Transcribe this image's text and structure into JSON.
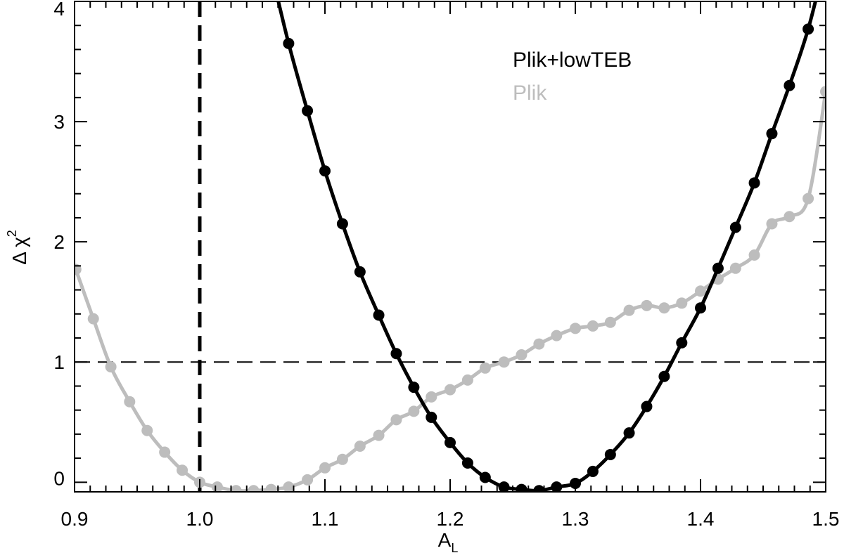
{
  "chart_data": {
    "type": "line",
    "title": "",
    "xlabel": "A",
    "xlabel_sub": "L",
    "ylabel": "Δ χ",
    "ylabel_sup": "2",
    "xlim": [
      0.9,
      1.5
    ],
    "ylim": [
      -0.08,
      4.0
    ],
    "x_ticks": [
      0.9,
      1.0,
      1.1,
      1.2,
      1.3,
      1.4,
      1.5
    ],
    "x_tick_labels": [
      "0.9",
      "1.0",
      "1.1",
      "1.2",
      "1.3",
      "1.4",
      "1.5"
    ],
    "y_ticks": [
      0,
      1,
      2,
      3,
      4
    ],
    "y_tick_labels": [
      "0",
      "1",
      "2",
      "3",
      "4"
    ],
    "grid": false,
    "legend_position": "top-right",
    "reference_lines": [
      {
        "orientation": "vertical",
        "value": 1.0,
        "style": "bold-dashed"
      },
      {
        "orientation": "horizontal",
        "value": 1.0,
        "style": "dashed"
      }
    ],
    "series": [
      {
        "name": "Plik+lowTEB",
        "color": "#000000",
        "x": [
          1.071,
          1.086,
          1.1,
          1.114,
          1.128,
          1.143,
          1.157,
          1.171,
          1.185,
          1.2,
          1.214,
          1.228,
          1.243,
          1.257,
          1.271,
          1.285,
          1.3,
          1.314,
          1.328,
          1.343,
          1.357,
          1.371,
          1.385,
          1.4,
          1.414,
          1.428,
          1.443,
          1.457,
          1.471,
          1.486
        ],
        "y": [
          3.65,
          3.09,
          2.59,
          2.15,
          1.75,
          1.39,
          1.07,
          0.79,
          0.54,
          0.33,
          0.16,
          0.04,
          -0.04,
          -0.06,
          -0.07,
          -0.04,
          -0.01,
          0.09,
          0.23,
          0.41,
          0.63,
          0.88,
          1.16,
          1.45,
          1.78,
          2.12,
          2.49,
          2.9,
          3.3,
          3.77
        ]
      },
      {
        "name": "Plik",
        "color": "#bdbdbd",
        "x": [
          0.901,
          0.915,
          0.929,
          0.944,
          0.958,
          0.972,
          0.986,
          1.0,
          1.014,
          1.029,
          1.043,
          1.057,
          1.071,
          1.086,
          1.1,
          1.114,
          1.128,
          1.143,
          1.157,
          1.171,
          1.185,
          1.2,
          1.214,
          1.228,
          1.243,
          1.257,
          1.271,
          1.285,
          1.3,
          1.314,
          1.328,
          1.343,
          1.357,
          1.371,
          1.385,
          1.4,
          1.414,
          1.428,
          1.443,
          1.457,
          1.471,
          1.486,
          1.5
        ],
        "y": [
          1.77,
          1.36,
          0.96,
          0.67,
          0.43,
          0.25,
          0.1,
          0.0,
          -0.04,
          -0.07,
          -0.07,
          -0.06,
          -0.04,
          0.02,
          0.12,
          0.19,
          0.3,
          0.39,
          0.52,
          0.59,
          0.71,
          0.77,
          0.85,
          0.95,
          1.0,
          1.06,
          1.15,
          1.22,
          1.28,
          1.3,
          1.33,
          1.43,
          1.47,
          1.45,
          1.49,
          1.59,
          1.69,
          1.78,
          1.89,
          2.15,
          2.21,
          2.36,
          3.25
        ]
      }
    ]
  }
}
